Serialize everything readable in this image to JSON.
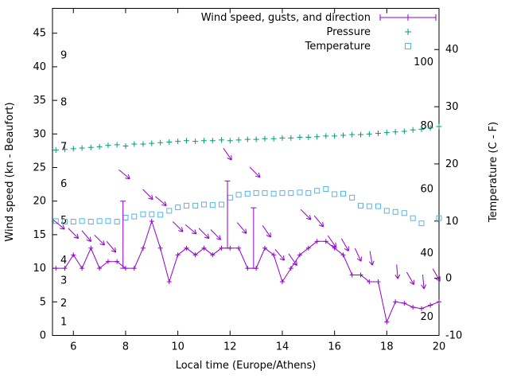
{
  "chart_data": {
    "type": "line",
    "title": "",
    "xlabel": "Local time (Europe/Athens)",
    "ylabel_left": "Wind speed (kn - Beaufort)",
    "ylabel_right": "Temperature (C - F)",
    "x_range": [
      5.2,
      20
    ],
    "y_left_range": [
      0,
      48.7
    ],
    "y_right_range": [
      -10,
      47.2
    ],
    "x_ticks": [
      6,
      8,
      10,
      12,
      14,
      16,
      18,
      20
    ],
    "y_left_ticks": [
      0,
      5,
      10,
      15,
      20,
      25,
      30,
      35,
      40,
      45
    ],
    "y_right_ticks": [
      -10,
      0,
      10,
      20,
      30,
      40
    ],
    "grid": false,
    "legend_position": "top-right-inside",
    "beaufort_scale_labels": [
      {
        "label": "1",
        "kn": 2.0
      },
      {
        "label": "2",
        "kn": 4.8
      },
      {
        "label": "3",
        "kn": 8.2
      },
      {
        "label": "4",
        "kn": 11.2
      },
      {
        "label": "5",
        "kn": 17.1
      },
      {
        "label": "6",
        "kn": 22.6
      },
      {
        "label": "7",
        "kn": 28.1
      },
      {
        "label": "8",
        "kn": 34.7
      },
      {
        "label": "9",
        "kn": 41.7
      }
    ],
    "fahrenheit_scale_labels": [
      {
        "label": "20",
        "c": -6.7
      },
      {
        "label": "40",
        "c": 4.4
      },
      {
        "label": "60",
        "c": 15.6
      },
      {
        "label": "80",
        "c": 26.7
      },
      {
        "label": "100",
        "c": 37.8
      }
    ],
    "legend": [
      {
        "label": "Wind speed, gusts, and direction",
        "color": "#9400d3",
        "style": "errorbar-line"
      },
      {
        "label": "Pressure",
        "color": "#009e73",
        "style": "plus"
      },
      {
        "label": "Temperature",
        "color": "#56b4e9",
        "style": "open-square"
      }
    ],
    "x": [
      5.33,
      5.67,
      6,
      6.33,
      6.67,
      7,
      7.33,
      7.67,
      8,
      8.33,
      8.67,
      9,
      9.33,
      9.67,
      10,
      10.33,
      10.67,
      11,
      11.33,
      11.67,
      12,
      12.33,
      12.67,
      13,
      13.33,
      13.67,
      14,
      14.33,
      14.67,
      15,
      15.33,
      15.67,
      16,
      16.33,
      16.67,
      17,
      17.33,
      17.67,
      18,
      18.33,
      18.67,
      19,
      19.33,
      19.67,
      20
    ],
    "series": [
      {
        "name": "wind_speed_kn",
        "axis": "left",
        "color": "#9400d3",
        "marker": "plus",
        "line": true,
        "values": [
          10,
          10,
          12,
          10,
          13,
          10,
          11,
          11,
          10,
          10,
          13,
          17,
          13,
          8,
          12,
          13,
          12,
          13,
          12,
          13,
          13,
          13,
          10,
          10,
          13,
          12,
          8,
          10,
          12,
          13,
          14,
          14,
          13,
          12,
          9,
          9,
          8,
          8,
          2,
          5,
          4.8,
          4.2,
          4,
          4.5,
          5
        ]
      },
      {
        "name": "pressure_plotted",
        "axis": "left",
        "color": "#009e73",
        "marker": "plus",
        "line": false,
        "values": [
          27.6,
          27.7,
          27.8,
          27.9,
          28,
          28.1,
          28.3,
          28.4,
          28.2,
          28.5,
          28.5,
          28.6,
          28.7,
          28.8,
          28.9,
          29,
          28.9,
          29,
          29,
          29.1,
          29,
          29.1,
          29.2,
          29.2,
          29.3,
          29.3,
          29.4,
          29.4,
          29.5,
          29.5,
          29.6,
          29.7,
          29.7,
          29.8,
          29.9,
          29.9,
          30,
          30.1,
          30.2,
          30.3,
          30.4,
          30.6,
          30.7,
          30.9,
          31.1
        ]
      },
      {
        "name": "temperature_c",
        "axis": "right",
        "color": "#56b4e9",
        "marker": "open-square",
        "line": false,
        "values": [
          10,
          9.9,
          9.9,
          10,
          9.9,
          10,
          10,
          9.9,
          10.6,
          10.8,
          11.2,
          11.2,
          11.1,
          11.8,
          12.4,
          12.7,
          12.7,
          12.9,
          12.8,
          12.9,
          14.1,
          14.6,
          14.8,
          14.9,
          14.9,
          14.8,
          14.9,
          14.9,
          15,
          14.9,
          15.3,
          15.6,
          14.7,
          14.8,
          14.1,
          12.7,
          12.6,
          12.6,
          11.8,
          11.6,
          11.4,
          10.5,
          9.6,
          null,
          10.5
        ]
      }
    ],
    "gusts": [
      {
        "x": 7.9,
        "from_kn": 10,
        "to_kn": 20
      },
      {
        "x": 11.9,
        "from_kn": 13,
        "to_kn": 23
      },
      {
        "x": 12.9,
        "from_kn": 10,
        "to_kn": 19
      }
    ],
    "wind_arrows": [
      {
        "x": 5.45,
        "kn": 16.5,
        "dir": 40
      },
      {
        "x": 6.0,
        "kn": 15.2,
        "dir": 45
      },
      {
        "x": 6.5,
        "kn": 14.8,
        "dir": 50
      },
      {
        "x": 7.0,
        "kn": 14.2,
        "dir": 45
      },
      {
        "x": 7.45,
        "kn": 13.2,
        "dir": 50
      },
      {
        "x": 7.95,
        "kn": 24.0,
        "dir": 40
      },
      {
        "x": 8.85,
        "kn": 21.0,
        "dir": 45
      },
      {
        "x": 9.35,
        "kn": 20.0,
        "dir": 40
      },
      {
        "x": 10.0,
        "kn": 16.2,
        "dir": 45
      },
      {
        "x": 10.5,
        "kn": 15.8,
        "dir": 40
      },
      {
        "x": 11.0,
        "kn": 15.2,
        "dir": 45
      },
      {
        "x": 11.45,
        "kn": 15.0,
        "dir": 45
      },
      {
        "x": 11.9,
        "kn": 27.0,
        "dir": 55
      },
      {
        "x": 12.45,
        "kn": 16.0,
        "dir": 50
      },
      {
        "x": 12.95,
        "kn": 24.3,
        "dir": 45
      },
      {
        "x": 13.4,
        "kn": 15.5,
        "dir": 55
      },
      {
        "x": 13.9,
        "kn": 12.0,
        "dir": 50
      },
      {
        "x": 14.4,
        "kn": 11.3,
        "dir": 55
      },
      {
        "x": 14.9,
        "kn": 18.0,
        "dir": 45
      },
      {
        "x": 15.4,
        "kn": 17.0,
        "dir": 50
      },
      {
        "x": 15.9,
        "kn": 14.0,
        "dir": 55
      },
      {
        "x": 16.4,
        "kn": 13.5,
        "dir": 60
      },
      {
        "x": 16.9,
        "kn": 12.0,
        "dir": 65
      },
      {
        "x": 17.4,
        "kn": 11.5,
        "dir": 80
      },
      {
        "x": 18.4,
        "kn": 9.5,
        "dir": 85
      },
      {
        "x": 18.9,
        "kn": 8.5,
        "dir": 60
      },
      {
        "x": 19.4,
        "kn": 8.0,
        "dir": 85
      },
      {
        "x": 19.9,
        "kn": 9.0,
        "dir": 60
      }
    ]
  },
  "colors": {
    "background": "#ffffff",
    "axis": "#000000",
    "wind": "#9400d3",
    "pressure": "#009e73",
    "temperature": "#56b4e9"
  }
}
